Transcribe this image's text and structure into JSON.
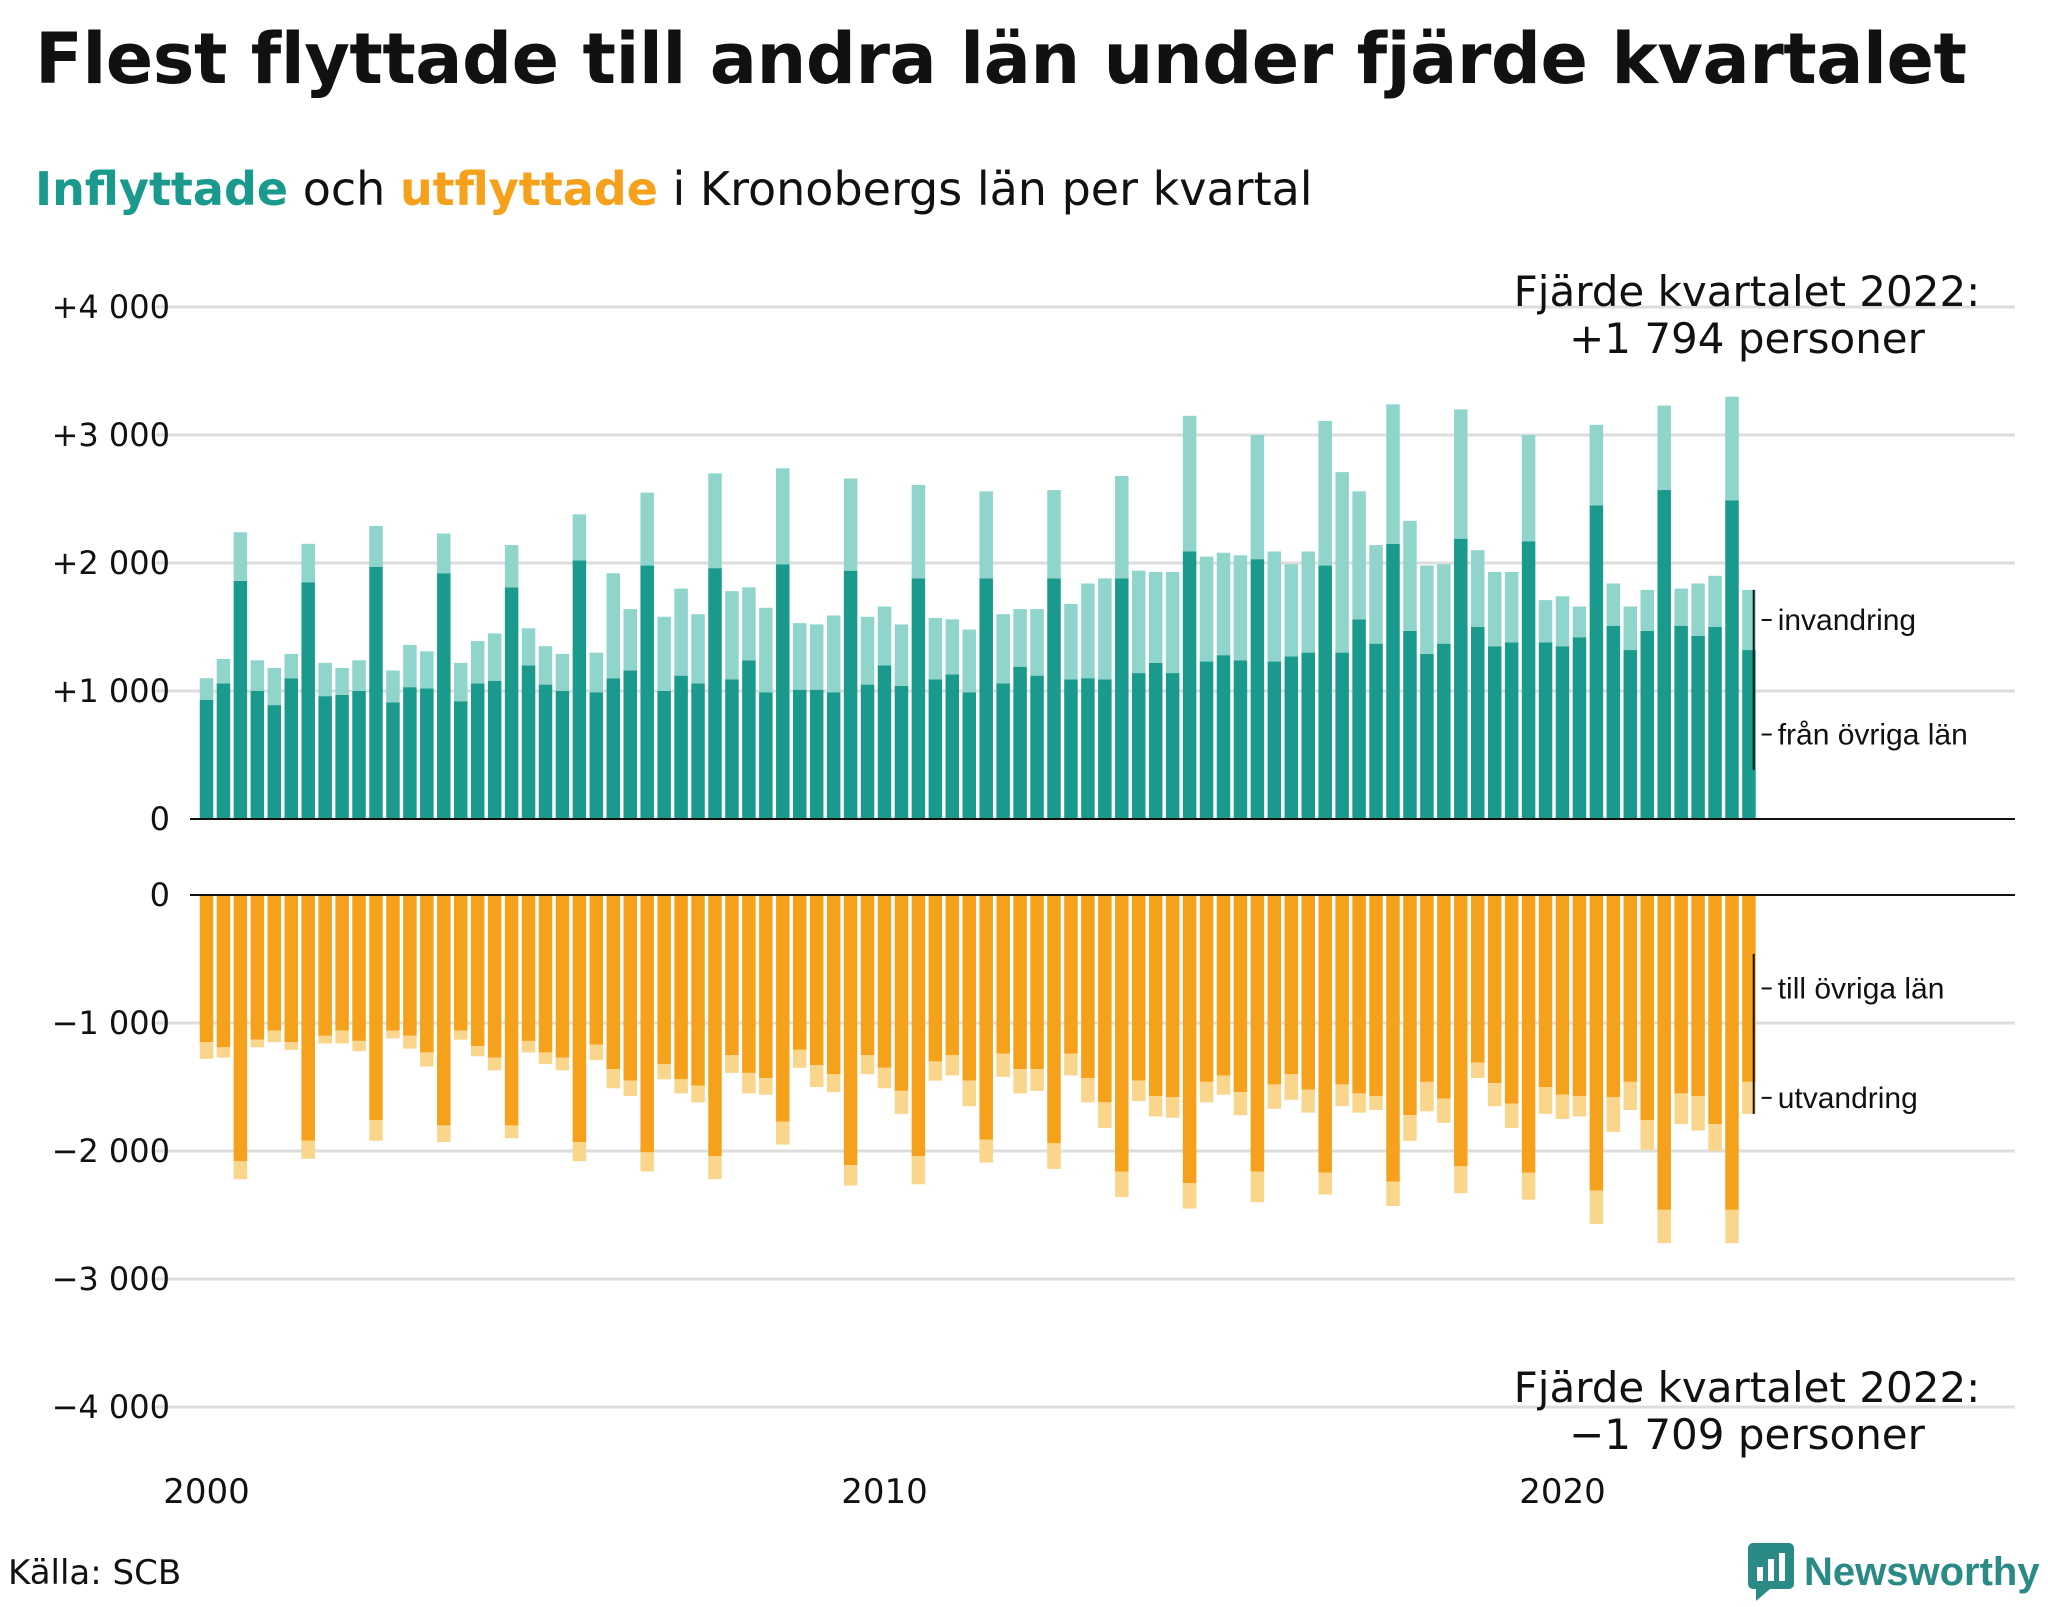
{
  "title": "Flest flyttade till andra län under fjärde kvartalet",
  "subtitle": {
    "in_word": "Inflyttade",
    "mid": " och ",
    "out_word": "utflyttade",
    "rest": " i Kronobergs län per kvartal"
  },
  "colors": {
    "in_domestic": "#1a9a8c",
    "in_immigration": "#8fd5cc",
    "out_domestic": "#f5a11c",
    "out_emigration": "#fad58c",
    "gridline": "#dddddd",
    "text": "#111111"
  },
  "source": "Källa: SCB",
  "brand": {
    "name": "Newsworthy",
    "icon": "newsworthy-logo-icon"
  },
  "chart_data": {
    "type": "bar",
    "x_start": "2000 Q1",
    "frequency": "quarterly",
    "x_ticks": [
      "2000",
      "2010",
      "2020"
    ],
    "top_panel": {
      "ylim": [
        0,
        4000
      ],
      "y_ticks": [
        "0",
        "+1 000",
        "+2 000",
        "+3 000",
        "+4 000"
      ],
      "series": [
        {
          "name": "från övriga län",
          "values": [
            930,
            1060,
            1860,
            1000,
            890,
            1100,
            1850,
            960,
            970,
            1000,
            1970,
            910,
            1030,
            1020,
            1920,
            920,
            1060,
            1080,
            1810,
            1200,
            1050,
            1000,
            2020,
            990,
            1100,
            1160,
            1980,
            1000,
            1120,
            1060,
            1960,
            1090,
            1240,
            990,
            1990,
            1010,
            1010,
            990,
            1940,
            1050,
            1200,
            1040,
            1880,
            1090,
            1130,
            990,
            1880,
            1060,
            1190,
            1120,
            1880,
            1090,
            1100,
            1090,
            1880,
            1140,
            1220,
            1140,
            2090,
            1230,
            1280,
            1240,
            2030,
            1230,
            1270,
            1300,
            1980,
            1300,
            1560,
            1370,
            2150,
            1470,
            1290,
            1370,
            2190,
            1500,
            1350,
            1380,
            2170,
            1380,
            1350,
            1420,
            2450,
            1510,
            1320,
            1470,
            2570,
            1510,
            1430,
            1500,
            2490,
            1320
          ]
        },
        {
          "name": "invandring",
          "values": [
            170,
            190,
            380,
            240,
            290,
            190,
            300,
            260,
            210,
            240,
            320,
            250,
            330,
            290,
            310,
            300,
            330,
            370,
            330,
            290,
            300,
            290,
            360,
            310,
            820,
            480,
            570,
            580,
            680,
            540,
            740,
            690,
            570,
            660,
            750,
            520,
            510,
            600,
            720,
            530,
            460,
            480,
            730,
            480,
            430,
            490,
            680,
            540,
            450,
            520,
            690,
            590,
            740,
            790,
            800,
            800,
            710,
            790,
            1060,
            820,
            800,
            820,
            970,
            860,
            720,
            790,
            1130,
            1410,
            1000,
            770,
            1090,
            860,
            690,
            620,
            1010,
            600,
            580,
            550,
            830,
            330,
            390,
            240,
            630,
            330,
            340,
            320,
            660,
            290,
            410,
            400,
            810,
            470
          ]
        }
      ]
    },
    "bottom_panel": {
      "ylim": [
        -4000,
        0
      ],
      "y_ticks": [
        "0",
        "−1 000",
        "−2 000",
        "−3 000",
        "−4 000"
      ],
      "series": [
        {
          "name": "till övriga län",
          "values": [
            -1150,
            -1190,
            -2080,
            -1130,
            -1060,
            -1150,
            -1920,
            -1100,
            -1060,
            -1140,
            -1760,
            -1060,
            -1100,
            -1230,
            -1800,
            -1060,
            -1180,
            -1270,
            -1800,
            -1140,
            -1230,
            -1270,
            -1930,
            -1170,
            -1360,
            -1450,
            -2010,
            -1320,
            -1440,
            -1490,
            -2040,
            -1250,
            -1390,
            -1430,
            -1770,
            -1210,
            -1330,
            -1400,
            -2110,
            -1250,
            -1350,
            -1530,
            -2040,
            -1300,
            -1250,
            -1450,
            -1910,
            -1240,
            -1360,
            -1360,
            -1940,
            -1240,
            -1430,
            -1620,
            -2160,
            -1450,
            -1570,
            -1580,
            -2250,
            -1460,
            -1410,
            -1540,
            -2160,
            -1480,
            -1400,
            -1520,
            -2170,
            -1480,
            -1550,
            -1570,
            -2240,
            -1720,
            -1460,
            -1590,
            -2120,
            -1310,
            -1470,
            -1630,
            -2170,
            -1500,
            -1560,
            -1570,
            -2310,
            -1580,
            -1460,
            -1760,
            -2460,
            -1550,
            -1570,
            -1790,
            -2460,
            -1460
          ]
        },
        {
          "name": "utvandring",
          "values": [
            -130,
            -80,
            -140,
            -60,
            -90,
            -60,
            -140,
            -60,
            -100,
            -80,
            -160,
            -60,
            -100,
            -110,
            -130,
            -70,
            -80,
            -100,
            -100,
            -90,
            -90,
            -100,
            -150,
            -120,
            -150,
            -120,
            -150,
            -120,
            -110,
            -130,
            -180,
            -140,
            -160,
            -130,
            -180,
            -140,
            -170,
            -140,
            -160,
            -150,
            -160,
            -180,
            -220,
            -150,
            -160,
            -200,
            -180,
            -180,
            -190,
            -170,
            -200,
            -170,
            -190,
            -200,
            -200,
            -160,
            -160,
            -160,
            -200,
            -160,
            -150,
            -180,
            -240,
            -190,
            -200,
            -180,
            -170,
            -170,
            -150,
            -110,
            -190,
            -200,
            -230,
            -190,
            -210,
            -120,
            -180,
            -190,
            -210,
            -210,
            -190,
            -160,
            -260,
            -270,
            -220,
            -230,
            -260,
            -240,
            -270,
            -210,
            -260,
            -250
          ]
        }
      ]
    },
    "annotations": {
      "top": {
        "line1": "Fjärde kvartalet 2022:",
        "line2": "+1 794 personer"
      },
      "bottom": {
        "line1": "Fjärde kvartalet 2022:",
        "line2": "−1 709 personer"
      }
    }
  }
}
